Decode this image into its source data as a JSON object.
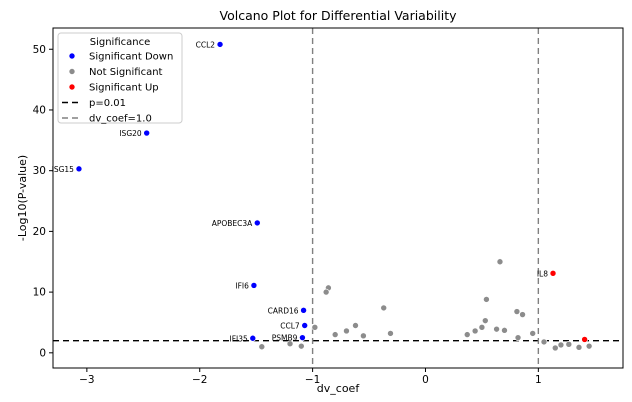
{
  "chart_data": {
    "type": "scatter",
    "title": "Volcano Plot for Differential Variability",
    "xlabel": "dv_coef",
    "ylabel": "-Log10(P-value)",
    "xlim": [
      -3.3,
      1.75
    ],
    "ylim": [
      -2.5,
      53.5
    ],
    "xticks": [
      -3,
      -2,
      -1,
      0,
      1
    ],
    "yticks": [
      0,
      10,
      20,
      30,
      40,
      50
    ],
    "grid": false,
    "legend": {
      "title": "Significance",
      "placement": "top-left",
      "entries": [
        {
          "label": "Significant Down",
          "kind": "marker",
          "color": "#0000ff"
        },
        {
          "label": "Not Significant",
          "kind": "marker",
          "color": "#8c8c8c"
        },
        {
          "label": "Significant Up",
          "kind": "marker",
          "color": "#ff0000"
        },
        {
          "label": "p=0.01",
          "kind": "line",
          "color": "#000000",
          "dash": "6,4"
        },
        {
          "label": "dv_coef=1.0",
          "kind": "line",
          "color": "#808080",
          "dash": "6,4"
        }
      ]
    },
    "reference_lines": [
      {
        "orientation": "horizontal",
        "value": 2,
        "color": "#000000",
        "label": "p=0.01"
      },
      {
        "orientation": "vertical",
        "value": -1,
        "color": "#808080",
        "label": "dv_coef=1.0"
      },
      {
        "orientation": "vertical",
        "value": 1,
        "color": "#808080",
        "label": "dv_coef=1.0"
      }
    ],
    "series": [
      {
        "name": "Significant Down",
        "color": "#0000ff",
        "points": [
          {
            "x": -1.82,
            "y": 50.8,
            "label": "CCL2"
          },
          {
            "x": -2.47,
            "y": 36.2,
            "label": "ISG20"
          },
          {
            "x": -3.07,
            "y": 30.3,
            "label": "ISG15"
          },
          {
            "x": -1.49,
            "y": 21.4,
            "label": "APOBEC3A"
          },
          {
            "x": -1.52,
            "y": 11.1,
            "label": "IFI6"
          },
          {
            "x": -1.08,
            "y": 7.0,
            "label": "CARD16"
          },
          {
            "x": -1.07,
            "y": 4.5,
            "label": "CCL7"
          },
          {
            "x": -1.53,
            "y": 2.4,
            "label": "IFI35"
          },
          {
            "x": -1.09,
            "y": 2.5,
            "label": "PSMB9"
          }
        ]
      },
      {
        "name": "Not Significant",
        "color": "#8c8c8c",
        "points": [
          {
            "x": -0.86,
            "y": 10.7
          },
          {
            "x": -0.88,
            "y": 10.0
          },
          {
            "x": -0.37,
            "y": 7.4
          },
          {
            "x": -0.98,
            "y": 4.2
          },
          {
            "x": -0.62,
            "y": 4.5
          },
          {
            "x": -0.7,
            "y": 3.6
          },
          {
            "x": -0.8,
            "y": 3.0
          },
          {
            "x": -0.31,
            "y": 3.2
          },
          {
            "x": -0.55,
            "y": 2.8
          },
          {
            "x": -1.45,
            "y": 1.0
          },
          {
            "x": -1.2,
            "y": 1.5
          },
          {
            "x": -1.1,
            "y": 1.1
          },
          {
            "x": 0.66,
            "y": 15.0
          },
          {
            "x": 0.54,
            "y": 8.8
          },
          {
            "x": 0.81,
            "y": 6.8
          },
          {
            "x": 0.86,
            "y": 6.3
          },
          {
            "x": 0.53,
            "y": 5.3
          },
          {
            "x": 0.5,
            "y": 4.2
          },
          {
            "x": 0.63,
            "y": 3.9
          },
          {
            "x": 0.44,
            "y": 3.6
          },
          {
            "x": 0.7,
            "y": 3.7
          },
          {
            "x": 0.37,
            "y": 3.0
          },
          {
            "x": 0.95,
            "y": 3.2
          },
          {
            "x": 0.82,
            "y": 2.5
          },
          {
            "x": 1.05,
            "y": 1.8
          },
          {
            "x": 1.2,
            "y": 1.3
          },
          {
            "x": 1.27,
            "y": 1.4
          },
          {
            "x": 1.36,
            "y": 0.9
          },
          {
            "x": 1.45,
            "y": 1.1
          },
          {
            "x": 1.15,
            "y": 0.8
          }
        ]
      },
      {
        "name": "Significant Up",
        "color": "#ff0000",
        "points": [
          {
            "x": 1.13,
            "y": 13.1,
            "label": "IL8"
          },
          {
            "x": 1.41,
            "y": 2.2
          }
        ]
      }
    ]
  }
}
